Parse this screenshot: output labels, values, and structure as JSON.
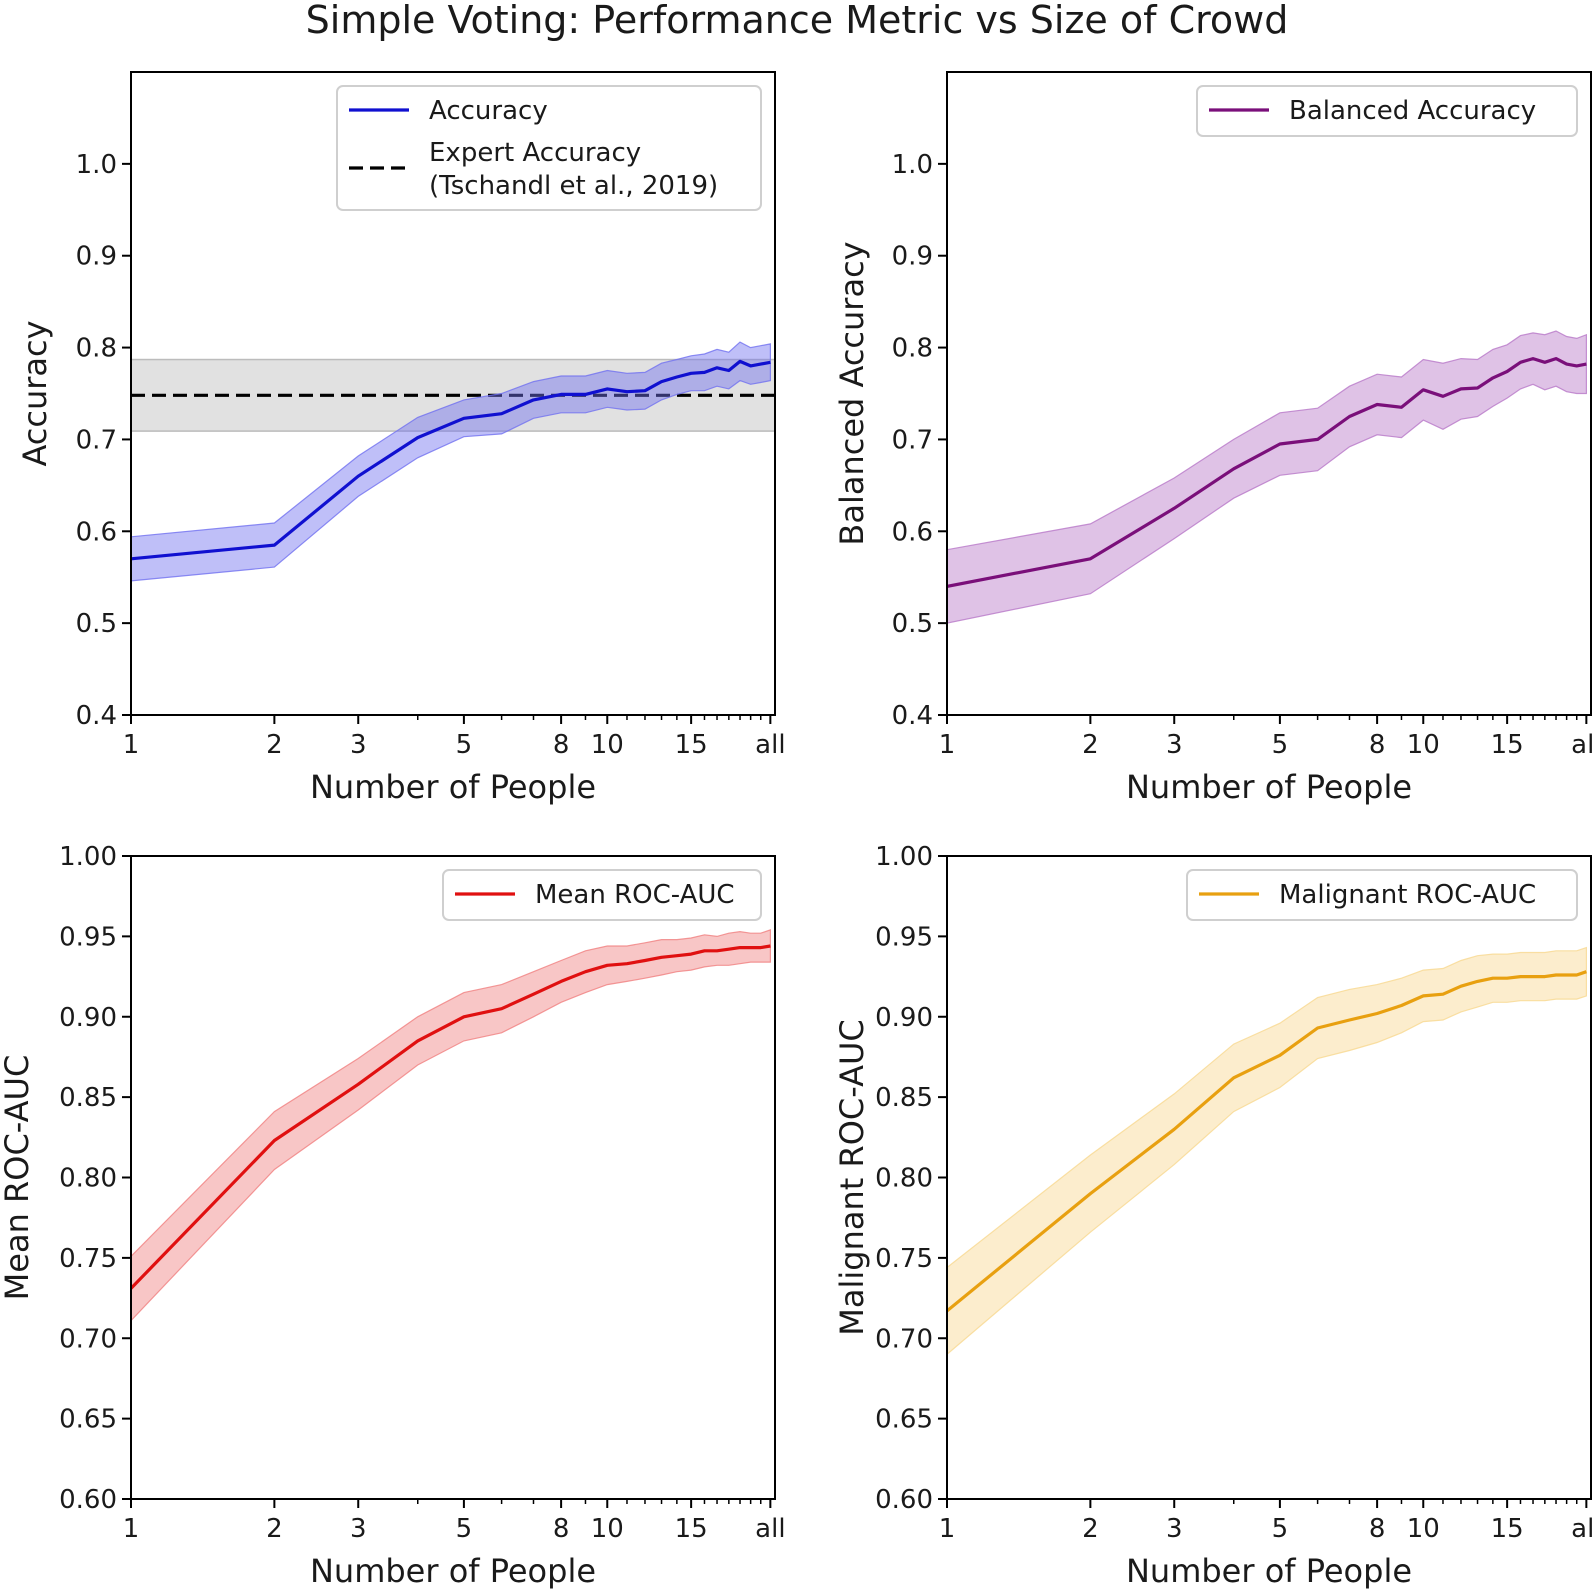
{
  "title": "Simple Voting: Performance Metric vs Size of Crowd",
  "x_ticks": [
    {
      "value": 1,
      "label": "1"
    },
    {
      "value": 2,
      "label": "2"
    },
    {
      "value": 3,
      "label": "3"
    },
    {
      "value": 5,
      "label": "5"
    },
    {
      "value": 8,
      "label": "8"
    },
    {
      "value": 10,
      "label": "10"
    },
    {
      "value": 15,
      "label": "15"
    },
    {
      "value": 22,
      "label": "all"
    }
  ],
  "x_minor_ticks": [
    4,
    6,
    7,
    9,
    11,
    12,
    13,
    14,
    16,
    17,
    18,
    19,
    20,
    21
  ],
  "chart_data": [
    {
      "type": "line",
      "panel": "top-left",
      "title": "",
      "xlabel": "Number of People",
      "ylabel": "Accuracy",
      "xscale": "log",
      "xlim": [
        1,
        22.5
      ],
      "ylim": [
        0.4,
        1.1
      ],
      "yticks": [
        0.4,
        0.5,
        0.6,
        0.7,
        0.8,
        0.9,
        1.0
      ],
      "ytick_labels": [
        "0.4",
        "0.5",
        "0.6",
        "0.7",
        "0.8",
        "0.9",
        "1.0"
      ],
      "legend_position": "top-right",
      "series": [
        {
          "name": "Accuracy",
          "color": "#1010d0",
          "band_color": "#7070f0",
          "x": [
            1,
            2,
            3,
            4,
            5,
            6,
            7,
            8,
            9,
            10,
            11,
            12,
            13,
            14,
            15,
            16,
            17,
            18,
            19,
            20,
            21,
            22
          ],
          "values": [
            0.57,
            0.585,
            0.66,
            0.702,
            0.723,
            0.728,
            0.743,
            0.749,
            0.749,
            0.755,
            0.752,
            0.753,
            0.763,
            0.768,
            0.772,
            0.773,
            0.778,
            0.775,
            0.785,
            0.78,
            0.782,
            0.784
          ],
          "lower": [
            0.546,
            0.561,
            0.638,
            0.68,
            0.703,
            0.706,
            0.723,
            0.729,
            0.729,
            0.735,
            0.732,
            0.733,
            0.743,
            0.749,
            0.753,
            0.753,
            0.758,
            0.755,
            0.764,
            0.76,
            0.762,
            0.764
          ],
          "upper": [
            0.594,
            0.609,
            0.682,
            0.724,
            0.743,
            0.75,
            0.763,
            0.769,
            0.769,
            0.775,
            0.772,
            0.773,
            0.783,
            0.787,
            0.791,
            0.793,
            0.798,
            0.795,
            0.806,
            0.8,
            0.802,
            0.804
          ]
        }
      ],
      "reference": {
        "name": "Expert Accuracy\n(Tschandl et al., 2019)",
        "label_line1": "Expert Accuracy",
        "label_line2": "(Tschandl et al., 2019)",
        "value": 0.748,
        "band": [
          0.709,
          0.787
        ],
        "color": "#000000",
        "band_color": "#bdbdbd"
      }
    },
    {
      "type": "line",
      "panel": "top-right",
      "title": "",
      "xlabel": "Number of People",
      "ylabel": "Balanced Accuracy",
      "xscale": "log",
      "xlim": [
        1,
        22.5
      ],
      "ylim": [
        0.4,
        1.1
      ],
      "yticks": [
        0.4,
        0.5,
        0.6,
        0.7,
        0.8,
        0.9,
        1.0
      ],
      "ytick_labels": [
        "0.4",
        "0.5",
        "0.6",
        "0.7",
        "0.8",
        "0.9",
        "1.0"
      ],
      "legend_position": "top-right",
      "series": [
        {
          "name": "Balanced Accuracy",
          "color": "#7a0f7a",
          "band_color": "#b878c8",
          "x": [
            1,
            2,
            3,
            4,
            5,
            6,
            7,
            8,
            9,
            10,
            11,
            12,
            13,
            14,
            15,
            16,
            17,
            18,
            19,
            20,
            21,
            22
          ],
          "values": [
            0.54,
            0.57,
            0.625,
            0.668,
            0.695,
            0.7,
            0.725,
            0.738,
            0.735,
            0.754,
            0.747,
            0.755,
            0.756,
            0.767,
            0.774,
            0.784,
            0.788,
            0.784,
            0.788,
            0.782,
            0.78,
            0.782
          ],
          "lower": [
            0.5,
            0.532,
            0.592,
            0.636,
            0.661,
            0.666,
            0.692,
            0.705,
            0.702,
            0.721,
            0.711,
            0.722,
            0.725,
            0.736,
            0.745,
            0.755,
            0.76,
            0.754,
            0.758,
            0.752,
            0.75,
            0.75
          ],
          "upper": [
            0.58,
            0.608,
            0.658,
            0.7,
            0.729,
            0.734,
            0.758,
            0.771,
            0.768,
            0.787,
            0.783,
            0.788,
            0.787,
            0.798,
            0.803,
            0.813,
            0.816,
            0.814,
            0.818,
            0.812,
            0.81,
            0.814
          ]
        }
      ]
    },
    {
      "type": "line",
      "panel": "bottom-left",
      "title": "",
      "xlabel": "Number of People",
      "ylabel": "Mean ROC-AUC",
      "xscale": "log",
      "xlim": [
        1,
        22.5
      ],
      "ylim": [
        0.6,
        1.0
      ],
      "yticks": [
        0.6,
        0.65,
        0.7,
        0.75,
        0.8,
        0.85,
        0.9,
        0.95,
        1.0
      ],
      "ytick_labels": [
        "0.60",
        "0.65",
        "0.70",
        "0.75",
        "0.80",
        "0.85",
        "0.90",
        "0.95",
        "1.00"
      ],
      "legend_position": "top-right",
      "series": [
        {
          "name": "Mean ROC-AUC",
          "color": "#e01010",
          "band_color": "#f08080",
          "x": [
            1,
            2,
            3,
            4,
            5,
            6,
            7,
            8,
            9,
            10,
            11,
            12,
            13,
            14,
            15,
            16,
            17,
            18,
            19,
            20,
            21,
            22
          ],
          "values": [
            0.731,
            0.823,
            0.858,
            0.885,
            0.9,
            0.905,
            0.914,
            0.922,
            0.928,
            0.932,
            0.933,
            0.935,
            0.937,
            0.938,
            0.939,
            0.941,
            0.941,
            0.942,
            0.943,
            0.943,
            0.943,
            0.944
          ],
          "lower": [
            0.711,
            0.805,
            0.842,
            0.87,
            0.885,
            0.89,
            0.9,
            0.909,
            0.915,
            0.92,
            0.922,
            0.924,
            0.926,
            0.928,
            0.929,
            0.931,
            0.932,
            0.932,
            0.933,
            0.934,
            0.934,
            0.934
          ],
          "upper": [
            0.751,
            0.841,
            0.874,
            0.9,
            0.915,
            0.92,
            0.928,
            0.935,
            0.941,
            0.944,
            0.944,
            0.946,
            0.948,
            0.948,
            0.949,
            0.951,
            0.95,
            0.952,
            0.953,
            0.952,
            0.952,
            0.954
          ]
        }
      ]
    },
    {
      "type": "line",
      "panel": "bottom-right",
      "title": "",
      "xlabel": "Number of People",
      "ylabel": "Malignant ROC-AUC",
      "xscale": "log",
      "xlim": [
        1,
        22.5
      ],
      "ylim": [
        0.6,
        1.0
      ],
      "yticks": [
        0.6,
        0.65,
        0.7,
        0.75,
        0.8,
        0.85,
        0.9,
        0.95,
        1.0
      ],
      "ytick_labels": [
        "0.60",
        "0.65",
        "0.70",
        "0.75",
        "0.80",
        "0.85",
        "0.90",
        "0.95",
        "1.00"
      ],
      "legend_position": "top-right",
      "series": [
        {
          "name": "Malignant ROC-AUC",
          "color": "#e8a010",
          "band_color": "#f8d890",
          "x": [
            1,
            2,
            3,
            4,
            5,
            6,
            7,
            8,
            9,
            10,
            11,
            12,
            13,
            14,
            15,
            16,
            17,
            18,
            19,
            20,
            21,
            22
          ],
          "values": [
            0.717,
            0.79,
            0.83,
            0.862,
            0.876,
            0.893,
            0.898,
            0.902,
            0.907,
            0.913,
            0.914,
            0.919,
            0.922,
            0.924,
            0.924,
            0.925,
            0.925,
            0.925,
            0.926,
            0.926,
            0.926,
            0.928
          ],
          "lower": [
            0.69,
            0.766,
            0.808,
            0.841,
            0.856,
            0.874,
            0.879,
            0.884,
            0.89,
            0.897,
            0.898,
            0.903,
            0.906,
            0.909,
            0.909,
            0.91,
            0.91,
            0.91,
            0.911,
            0.911,
            0.911,
            0.913
          ],
          "upper": [
            0.744,
            0.814,
            0.852,
            0.883,
            0.896,
            0.912,
            0.917,
            0.92,
            0.924,
            0.929,
            0.93,
            0.935,
            0.938,
            0.939,
            0.939,
            0.94,
            0.94,
            0.94,
            0.941,
            0.941,
            0.941,
            0.943
          ]
        }
      ]
    }
  ]
}
